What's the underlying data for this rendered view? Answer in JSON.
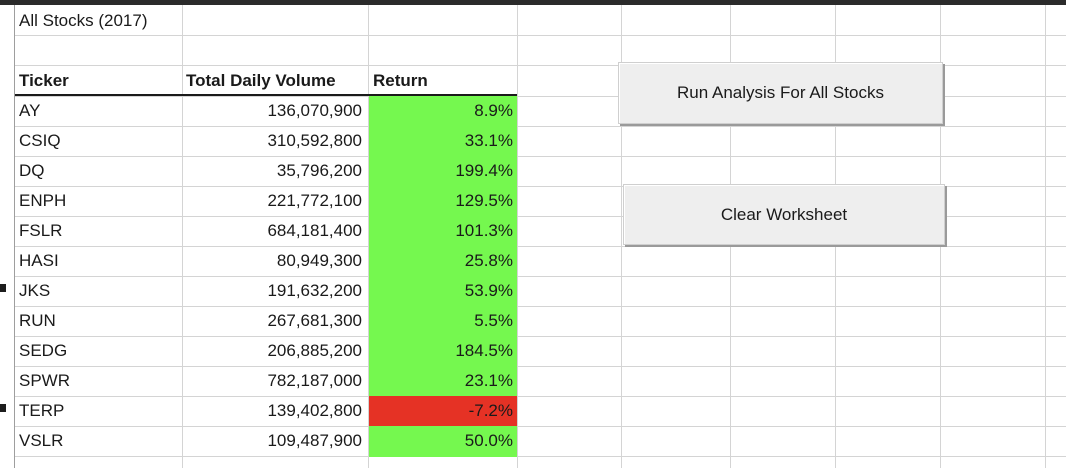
{
  "sheet": {
    "title": "All Stocks (2017)",
    "headers": {
      "ticker": "Ticker",
      "volume": "Total Daily Volume",
      "return": "Return"
    },
    "rows": [
      {
        "ticker": "AY",
        "volume": "136,070,900",
        "return": "8.9%",
        "positive": true
      },
      {
        "ticker": "CSIQ",
        "volume": "310,592,800",
        "return": "33.1%",
        "positive": true
      },
      {
        "ticker": "DQ",
        "volume": "35,796,200",
        "return": "199.4%",
        "positive": true
      },
      {
        "ticker": "ENPH",
        "volume": "221,772,100",
        "return": "129.5%",
        "positive": true
      },
      {
        "ticker": "FSLR",
        "volume": "684,181,400",
        "return": "101.3%",
        "positive": true
      },
      {
        "ticker": "HASI",
        "volume": "80,949,300",
        "return": "25.8%",
        "positive": true
      },
      {
        "ticker": "JKS",
        "volume": "191,632,200",
        "return": "53.9%",
        "positive": true
      },
      {
        "ticker": "RUN",
        "volume": "267,681,300",
        "return": "5.5%",
        "positive": true
      },
      {
        "ticker": "SEDG",
        "volume": "206,885,200",
        "return": "184.5%",
        "positive": true
      },
      {
        "ticker": "SPWR",
        "volume": "782,187,000",
        "return": "23.1%",
        "positive": true
      },
      {
        "ticker": "TERP",
        "volume": "139,402,800",
        "return": "-7.2%",
        "positive": false
      },
      {
        "ticker": "VSLR",
        "volume": "109,487,900",
        "return": "50.0%",
        "positive": true
      }
    ]
  },
  "buttons": {
    "run_label": "Run Analysis For All Stocks",
    "clear_label": "Clear Worksheet"
  },
  "colors": {
    "positive_fill": "#75f84f",
    "negative_fill": "#e53225"
  }
}
